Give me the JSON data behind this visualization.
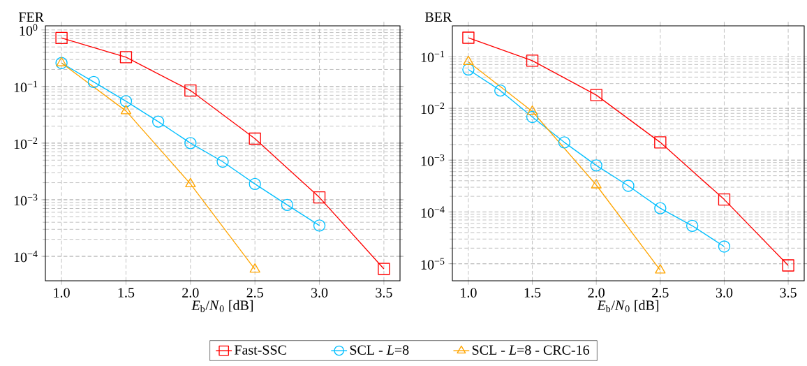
{
  "chart_data": [
    {
      "type": "line",
      "ylabel": "FER",
      "xlabel": "*E*$_{b}$/*N*$_{0}$ [dB]",
      "log": "y",
      "grid": true,
      "legend": "bottom",
      "xlim": [
        0.875,
        3.625
      ],
      "ylim": [
        3.7e-05,
        1.18
      ],
      "xticks": [
        {
          "value": 1,
          "label": "1.0"
        },
        {
          "value": 1.5,
          "label": "1.5"
        },
        {
          "value": 2,
          "label": "2.0"
        },
        {
          "value": 2.5,
          "label": "2.5"
        },
        {
          "value": 3,
          "label": "3.0"
        },
        {
          "value": 3.5,
          "label": "3.5"
        }
      ],
      "yticks": [
        {
          "value": 0.0001,
          "label": "10$^{−4}$"
        },
        {
          "value": 0.001,
          "label": "10$^{−3}$"
        },
        {
          "value": 0.01,
          "label": "10$^{−2}$"
        },
        {
          "value": 0.1,
          "label": "10$^{−1}$"
        },
        {
          "value": 1,
          "label": "10$^{0}$"
        }
      ],
      "series": [
        {
          "name": "Fast-SSC",
          "color": "#ff0000",
          "marker": "square",
          "x": [
            1.0,
            1.5,
            2.0,
            2.5,
            3.0,
            3.5
          ],
          "values": [
            0.72,
            0.33,
            0.085,
            0.012,
            0.0011,
            6e-05
          ]
        },
        {
          "name": "SCL - *L*=8",
          "color": "#00bfff",
          "marker": "circle",
          "x": [
            1.0,
            1.25,
            1.5,
            1.75,
            2.0,
            2.25,
            2.5,
            2.75,
            3.0
          ],
          "values": [
            0.26,
            0.12,
            0.055,
            0.024,
            0.01,
            0.0047,
            0.0019,
            0.00081,
            0.00035
          ]
        },
        {
          "name": "SCL - *L*=8 - CRC-16",
          "color": "#ffa500",
          "marker": "triangle",
          "x": [
            1.0,
            1.5,
            2.0,
            2.5
          ],
          "values": [
            0.26,
            0.037,
            0.0019,
            5.9e-05
          ]
        }
      ]
    },
    {
      "type": "line",
      "ylabel": "BER",
      "xlabel": "*E*$_{b}$/*N*$_{0}$ [dB]",
      "log": "y",
      "grid": true,
      "xlim": [
        0.875,
        3.625
      ],
      "ylim": [
        4.7e-06,
        0.39
      ],
      "xticks": [
        {
          "value": 1,
          "label": "1.0"
        },
        {
          "value": 1.5,
          "label": "1.5"
        },
        {
          "value": 2,
          "label": "2.0"
        },
        {
          "value": 2.5,
          "label": "2.5"
        },
        {
          "value": 3,
          "label": "3.0"
        },
        {
          "value": 3.5,
          "label": "3.5"
        }
      ],
      "yticks": [
        {
          "value": 1e-05,
          "label": "10$^{−5}$"
        },
        {
          "value": 0.0001,
          "label": "10$^{−4}$"
        },
        {
          "value": 0.001,
          "label": "10$^{−3}$"
        },
        {
          "value": 0.01,
          "label": "10$^{−2}$"
        },
        {
          "value": 0.1,
          "label": "10$^{−1}$"
        }
      ],
      "series": [
        {
          "color": "#ff0000",
          "marker": "square",
          "x": [
            1.0,
            1.5,
            2.0,
            2.5,
            3.0,
            3.5
          ],
          "values": [
            0.23,
            0.083,
            0.018,
            0.0022,
            0.000174,
            9.3e-06
          ]
        },
        {
          "color": "#00bfff",
          "marker": "circle",
          "x": [
            1.0,
            1.25,
            1.5,
            1.75,
            2.0,
            2.25,
            2.5,
            2.75,
            3.0
          ],
          "values": [
            0.056,
            0.022,
            0.0068,
            0.0022,
            0.00079,
            0.00032,
            0.000118,
            5.4e-05,
            2.15e-05
          ]
        },
        {
          "color": "#ffa500",
          "marker": "triangle",
          "x": [
            1.0,
            1.5,
            2.0,
            2.5
          ],
          "values": [
            0.079,
            0.0087,
            0.00033,
            7.5e-06
          ]
        }
      ]
    }
  ]
}
